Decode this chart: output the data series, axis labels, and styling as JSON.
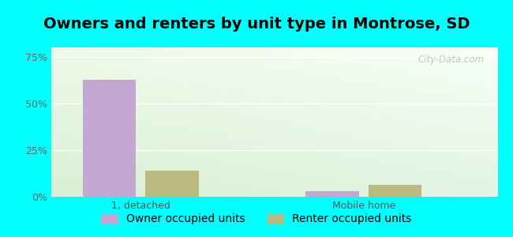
{
  "title": "Owners and renters by unit type in Montrose, SD",
  "categories": [
    "1, detached",
    "Mobile home"
  ],
  "owner_values": [
    62.5,
    3.1
  ],
  "renter_values": [
    14.0,
    6.3
  ],
  "owner_color": "#c4a8d4",
  "renter_color": "#b8ba80",
  "yticks": [
    0,
    25,
    50,
    75
  ],
  "ytick_labels": [
    "0%",
    "25%",
    "50%",
    "75%"
  ],
  "ylim": [
    0,
    80
  ],
  "bar_width": 0.12,
  "group_centers": [
    0.2,
    0.7
  ],
  "legend_owner": "Owner occupied units",
  "legend_renter": "Renter occupied units",
  "outer_bg": "#00ffff",
  "watermark": "City-Data.com",
  "title_fontsize": 14,
  "tick_fontsize": 9,
  "legend_fontsize": 10
}
